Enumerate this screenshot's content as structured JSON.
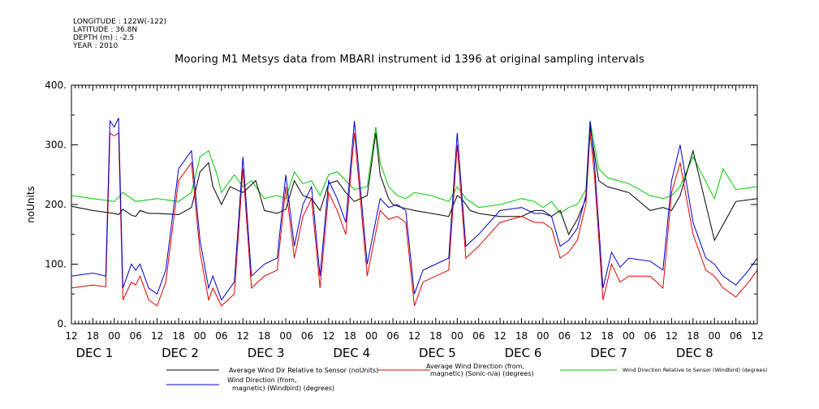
{
  "header": {
    "longitude": "LONGITUDE : 122W(-122)",
    "latitude": "LATITUDE : 36.8N",
    "depth": "DEPTH (m) : -2.5",
    "year": "YEAR : 2010"
  },
  "chart_data": {
    "type": "line",
    "title": "Mooring M1 Metsys data from MBARI instrument id 1396 at original sampling intervals",
    "ylabel": "noUnits",
    "ylim": [
      0,
      400
    ],
    "yticks": [
      0,
      100,
      200,
      300,
      400
    ],
    "ytick_labels": [
      "0.",
      "100.",
      "200.",
      "300.",
      "400."
    ],
    "xlim": [
      0,
      8
    ],
    "x_hour_ticks": [
      0.25,
      0.5,
      0.75,
      1.0,
      1.25,
      1.5,
      1.75,
      2.0,
      2.25,
      2.5,
      2.75,
      3.0,
      3.25,
      3.5,
      3.75,
      4.0,
      4.25,
      4.5,
      4.75,
      5.0,
      5.25,
      5.5,
      5.75,
      6.0,
      6.25,
      6.5,
      6.75,
      7.0,
      7.25,
      7.5,
      7.75,
      8.0
    ],
    "x_hour_labels": [
      "12",
      "18",
      "00",
      "06",
      "12",
      "18",
      "00",
      "06",
      "12",
      "18",
      "00",
      "06",
      "12",
      "18",
      "00",
      "06",
      "12",
      "18",
      "00",
      "06",
      "12",
      "18",
      "00",
      "06",
      "12",
      "18",
      "00",
      "06",
      "12",
      "18",
      "00",
      "06"
    ],
    "x_hour_label_positions": [
      0.0,
      0.25,
      0.5,
      0.75,
      1.0,
      1.25,
      1.5,
      1.75,
      2.0,
      2.25,
      2.5,
      2.75,
      3.0,
      3.25,
      3.5,
      3.75,
      4.0,
      4.25,
      4.5,
      4.75,
      5.0,
      5.25,
      5.5,
      5.75,
      6.0,
      6.25,
      6.5,
      6.75,
      7.0,
      7.25,
      7.5,
      7.75
    ],
    "x_hour_label_texts": [
      "12",
      "18",
      "00",
      "06",
      "12",
      "18",
      "00",
      "06",
      "12",
      "18",
      "00",
      "06",
      "12",
      "18",
      "00",
      "06",
      "12",
      "18",
      "00",
      "06",
      "12",
      "18",
      "00",
      "06",
      "12",
      "18",
      "00",
      "06",
      "12",
      "18",
      "00",
      "06"
    ],
    "x_hour_label_list": [
      "12",
      "18",
      "00",
      "06",
      "12",
      "18",
      "00",
      "06",
      "12",
      "18",
      "00",
      "06",
      "12",
      "18",
      "00",
      "06",
      "12",
      "18",
      "00",
      "06",
      "12",
      "18",
      "00",
      "06",
      "12",
      "18",
      "00",
      "06",
      "12",
      "18",
      "00",
      "06",
      "12"
    ],
    "day_labels": [
      {
        "text": "DEC  1",
        "x": 0.25
      },
      {
        "text": "DEC  2",
        "x": 1.25
      },
      {
        "text": "DEC  3",
        "x": 2.25
      },
      {
        "text": "DEC  4",
        "x": 3.25
      },
      {
        "text": "DEC  5",
        "x": 4.25
      },
      {
        "text": "DEC  6",
        "x": 5.25
      },
      {
        "text": "DEC  7",
        "x": 6.25
      },
      {
        "text": "DEC  8",
        "x": 7.25
      }
    ],
    "series": [
      {
        "name": "Average Wind Dir Relative to Sensor (noUnits)",
        "color": "#000000",
        "x": [
          0,
          0.25,
          0.5,
          0.55,
          0.6,
          0.7,
          0.75,
          0.8,
          0.9,
          1.0,
          1.25,
          1.4,
          1.5,
          1.6,
          1.65,
          1.75,
          1.85,
          2.0,
          2.15,
          2.25,
          2.4,
          2.5,
          2.6,
          2.7,
          2.8,
          2.9,
          3.0,
          3.1,
          3.2,
          3.3,
          3.45,
          3.55,
          3.6,
          3.7,
          3.75,
          3.85,
          4.0,
          4.2,
          4.4,
          4.5,
          4.55,
          4.65,
          4.75,
          5.0,
          5.25,
          5.4,
          5.5,
          5.6,
          5.7,
          5.8,
          5.9,
          6.0,
          6.05,
          6.15,
          6.25,
          6.5,
          6.75,
          6.9,
          7.0,
          7.1,
          7.25,
          7.5,
          7.75,
          8.0
        ],
        "y": [
          197,
          190,
          185,
          183,
          192,
          182,
          180,
          190,
          185,
          185,
          183,
          195,
          255,
          270,
          230,
          200,
          230,
          220,
          240,
          190,
          185,
          192,
          240,
          215,
          210,
          190,
          235,
          240,
          220,
          205,
          215,
          320,
          250,
          210,
          200,
          195,
          190,
          185,
          180,
          215,
          210,
          190,
          185,
          180,
          180,
          190,
          190,
          180,
          190,
          150,
          175,
          210,
          330,
          240,
          230,
          220,
          190,
          195,
          190,
          215,
          290,
          140,
          205,
          210
        ]
      },
      {
        "name": "Average Wind Direction (from, magnetic) (Sonic-n/a) (degrees)",
        "color": "#e00000",
        "x": [
          0,
          0.25,
          0.4,
          0.45,
          0.5,
          0.55,
          0.6,
          0.7,
          0.75,
          0.8,
          0.9,
          1.0,
          1.1,
          1.25,
          1.4,
          1.5,
          1.6,
          1.65,
          1.75,
          1.9,
          2.0,
          2.1,
          2.25,
          2.4,
          2.5,
          2.6,
          2.7,
          2.8,
          2.9,
          3.0,
          3.1,
          3.2,
          3.3,
          3.45,
          3.6,
          3.7,
          3.8,
          3.9,
          4.0,
          4.1,
          4.25,
          4.4,
          4.5,
          4.6,
          4.75,
          5.0,
          5.25,
          5.4,
          5.5,
          5.6,
          5.7,
          5.8,
          5.9,
          6.0,
          6.05,
          6.1,
          6.2,
          6.3,
          6.4,
          6.5,
          6.75,
          6.9,
          7.0,
          7.1,
          7.25,
          7.4,
          7.5,
          7.6,
          7.75,
          7.9,
          8.0
        ],
        "y": [
          60,
          65,
          62,
          320,
          315,
          320,
          40,
          70,
          65,
          80,
          40,
          30,
          70,
          240,
          270,
          120,
          40,
          60,
          30,
          50,
          260,
          60,
          80,
          90,
          230,
          110,
          180,
          210,
          60,
          220,
          190,
          150,
          320,
          80,
          190,
          175,
          180,
          170,
          30,
          70,
          80,
          90,
          300,
          110,
          130,
          170,
          180,
          170,
          170,
          160,
          110,
          120,
          140,
          200,
          320,
          250,
          40,
          100,
          70,
          80,
          80,
          60,
          220,
          270,
          150,
          90,
          80,
          60,
          45,
          70,
          90
        ]
      },
      {
        "name": "Wind Direction Relative to Sensor (Windbird) (degrees)",
        "color": "#00cc00",
        "x": [
          0,
          0.25,
          0.5,
          0.6,
          0.75,
          1.0,
          1.25,
          1.4,
          1.5,
          1.6,
          1.7,
          1.75,
          1.9,
          2.0,
          2.1,
          2.25,
          2.4,
          2.5,
          2.6,
          2.7,
          2.8,
          2.9,
          3.0,
          3.1,
          3.2,
          3.3,
          3.45,
          3.55,
          3.6,
          3.7,
          3.8,
          3.9,
          4.0,
          4.2,
          4.4,
          4.5,
          4.6,
          4.75,
          5.0,
          5.25,
          5.4,
          5.5,
          5.6,
          5.7,
          5.8,
          5.9,
          6.0,
          6.05,
          6.15,
          6.25,
          6.5,
          6.75,
          6.9,
          7.0,
          7.1,
          7.25,
          7.5,
          7.6,
          7.75,
          8.0
        ],
        "y": [
          215,
          210,
          205,
          220,
          205,
          210,
          205,
          220,
          280,
          290,
          250,
          220,
          250,
          230,
          240,
          210,
          215,
          210,
          255,
          235,
          240,
          215,
          250,
          255,
          240,
          225,
          230,
          330,
          270,
          230,
          215,
          210,
          220,
          215,
          205,
          230,
          210,
          195,
          200,
          210,
          205,
          195,
          205,
          185,
          195,
          200,
          225,
          340,
          260,
          245,
          235,
          215,
          210,
          215,
          230,
          280,
          210,
          260,
          225,
          230
        ]
      },
      {
        "name": "Wind Direction (from, magnetic) (Windbird) (degrees)",
        "color": "#0000cc",
        "x": [
          0,
          0.25,
          0.4,
          0.45,
          0.5,
          0.55,
          0.6,
          0.7,
          0.75,
          0.8,
          0.9,
          1.0,
          1.1,
          1.25,
          1.4,
          1.5,
          1.6,
          1.65,
          1.75,
          1.9,
          2.0,
          2.1,
          2.25,
          2.4,
          2.5,
          2.6,
          2.7,
          2.8,
          2.9,
          3.0,
          3.1,
          3.2,
          3.3,
          3.45,
          3.6,
          3.7,
          3.8,
          3.9,
          4.0,
          4.1,
          4.25,
          4.4,
          4.5,
          4.6,
          4.75,
          5.0,
          5.25,
          5.4,
          5.5,
          5.6,
          5.7,
          5.8,
          5.9,
          6.0,
          6.05,
          6.1,
          6.2,
          6.3,
          6.4,
          6.5,
          6.75,
          6.9,
          7.0,
          7.1,
          7.25,
          7.4,
          7.5,
          7.6,
          7.75,
          7.9,
          8.0
        ],
        "y": [
          80,
          85,
          80,
          340,
          330,
          345,
          60,
          100,
          90,
          100,
          60,
          50,
          90,
          260,
          290,
          140,
          60,
          80,
          40,
          70,
          280,
          80,
          100,
          110,
          250,
          130,
          200,
          230,
          80,
          240,
          210,
          170,
          340,
          100,
          210,
          195,
          200,
          190,
          50,
          90,
          100,
          110,
          320,
          130,
          150,
          190,
          195,
          185,
          185,
          180,
          130,
          140,
          160,
          215,
          340,
          270,
          60,
          120,
          95,
          110,
          105,
          90,
          240,
          300,
          170,
          110,
          100,
          80,
          65,
          90,
          110
        ]
      }
    ],
    "legend": [
      {
        "label": "Average Wind Dir Relative to Sensor (noUnits)",
        "color": "#000000"
      },
      {
        "label": "Average Wind Direction (from, magnetic) (Sonic-n/a) (degrees)",
        "color": "#e00000"
      },
      {
        "label": "Wind Direction Relative to Sensor (Windbird) (degrees)",
        "color": "#00cc00"
      },
      {
        "label": "Wind Direction (from, magnetic) (Windbird) (degrees)",
        "color": "#0000cc"
      }
    ],
    "legend_lines": {
      "black_1": "Average Wind Dir Relative to Sensor (noUnits)",
      "red_1": "Average Wind Direction (from,",
      "red_2": "magnetic) (Sonic-n/a) (degrees)",
      "green_1": "Wind Direction Relative to Sensor (Windbird) (degrees)",
      "blue_1": "Wind Direction (from,",
      "blue_2": "magnetic) (Windbird) (degrees)"
    },
    "grid": false,
    "legend_placement": "bottom"
  }
}
